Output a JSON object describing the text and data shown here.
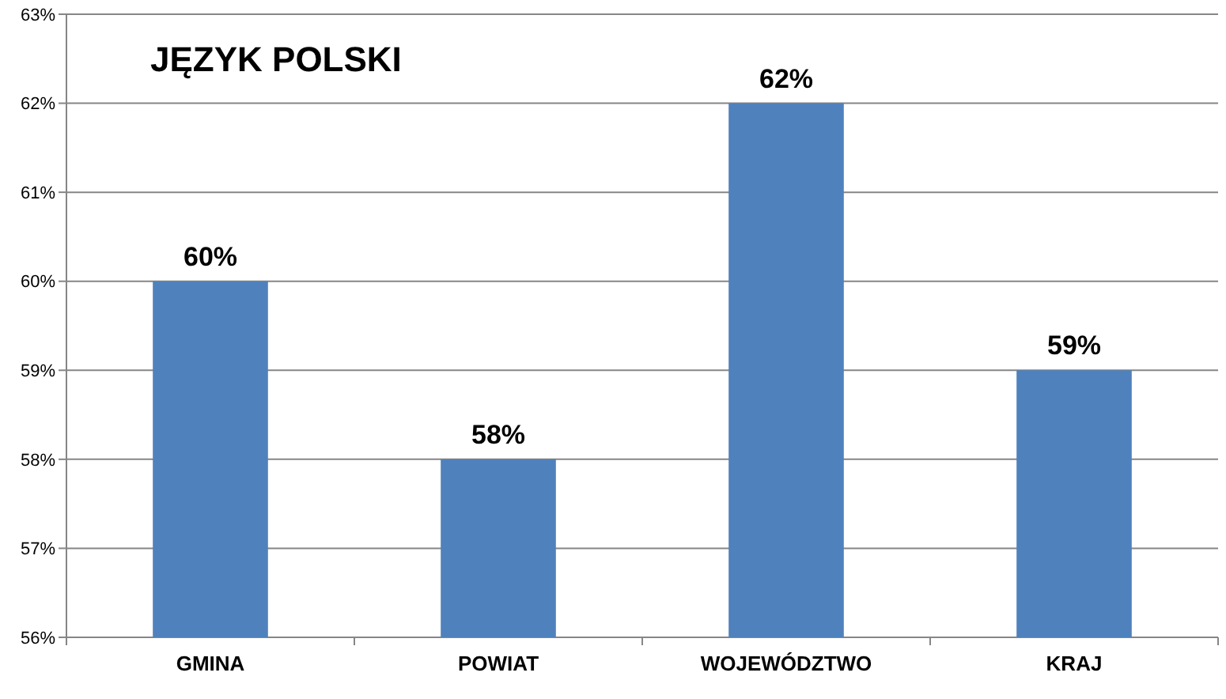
{
  "chart_data": {
    "type": "bar",
    "title": "JĘZYK POLSKI",
    "categories": [
      "GMINA",
      "POWIAT",
      "WOJEWÓDZTWO",
      "KRAJ"
    ],
    "values": [
      60,
      58,
      62,
      59
    ],
    "value_labels": [
      "60%",
      "58%",
      "62%",
      "59%"
    ],
    "color": "#4f81bd",
    "ylim": [
      56,
      63
    ],
    "yticks": [
      {
        "value": 56,
        "label": "56%"
      },
      {
        "value": 57,
        "label": "57%"
      },
      {
        "value": 58,
        "label": "58%"
      },
      {
        "value": 59,
        "label": "59%"
      },
      {
        "value": 60,
        "label": "60%"
      },
      {
        "value": 61,
        "label": "61%"
      },
      {
        "value": 62,
        "label": "62%"
      },
      {
        "value": 63,
        "label": "63%"
      }
    ],
    "grid": "y"
  }
}
